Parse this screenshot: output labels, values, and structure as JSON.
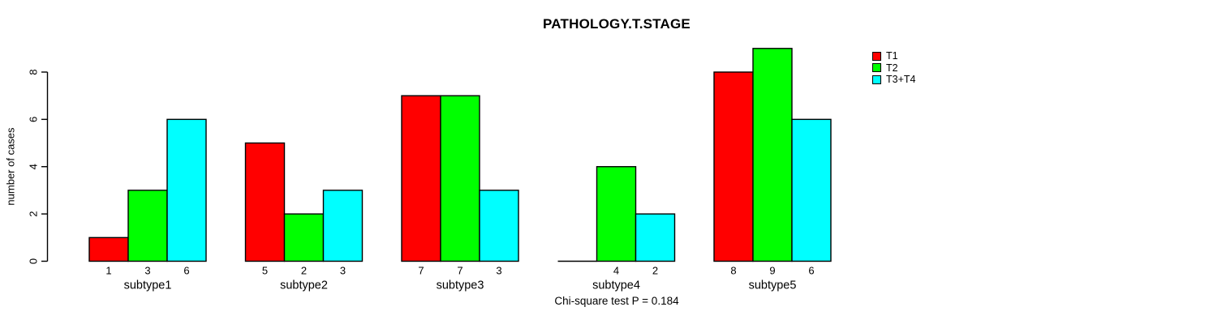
{
  "title": "PATHOLOGY.T.STAGE",
  "footnote": "Chi-square test P = 0.184",
  "chart_data": {
    "type": "bar",
    "title": "PATHOLOGY.T.STAGE",
    "xlabel": "",
    "ylabel": "number of cases",
    "categories": [
      "subtype1",
      "subtype2",
      "subtype3",
      "subtype4",
      "subtype5"
    ],
    "series": [
      {
        "name": "T1",
        "color": "#ff0000",
        "values": [
          1,
          5,
          7,
          0,
          8
        ]
      },
      {
        "name": "T2",
        "color": "#00ff00",
        "values": [
          3,
          2,
          7,
          4,
          9
        ]
      },
      {
        "name": "T3+T4",
        "color": "#00ffff",
        "values": [
          6,
          3,
          3,
          2,
          6
        ]
      }
    ],
    "yticks": [
      0,
      2,
      4,
      6,
      8
    ],
    "ylim": [
      0,
      9
    ],
    "grid": false,
    "legend_position": "top-right",
    "bar_border_color": "#000000",
    "show_value_labels": true,
    "value_label_hidden_for_zero": true,
    "annotation": "Chi-square test P = 0.184"
  }
}
